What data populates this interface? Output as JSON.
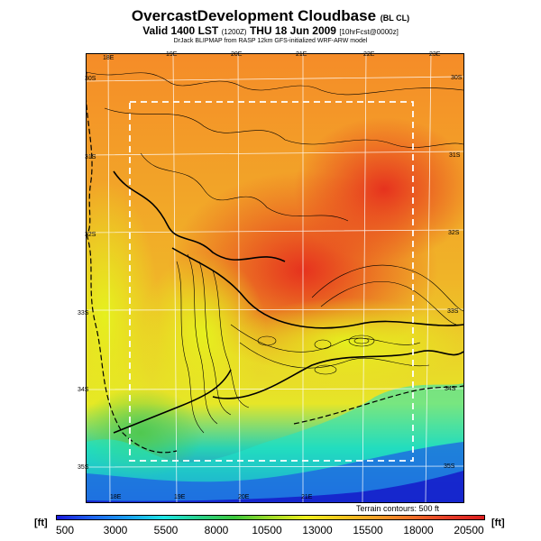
{
  "header": {
    "title": "OvercastDevelopment Cloudbase",
    "title_unit": "(BL CL)",
    "valid": "Valid 1400 LST",
    "valid_utc": "(1200Z)",
    "valid_date": "THU 18 Jun 2009",
    "valid_run": "[10hrFcst@0000z]",
    "credit": "DrJack BLIPMAP from RASP 12km GFS-initialized WRF-ARW model"
  },
  "map": {
    "lon_labels_top": [
      "18E",
      "19E",
      "20E",
      "21E",
      "22E",
      "23E"
    ],
    "lon_labels_bottom": [
      "18E",
      "19E",
      "20E",
      "21E"
    ],
    "lat_labels_left": [
      "30S",
      "31S",
      "32S",
      "33S",
      "34S",
      "35S"
    ],
    "lat_labels_right": [
      "30S",
      "31S",
      "32S",
      "33S",
      "34S",
      "35S"
    ],
    "terrain_note": "Terrain contours: 500 ft"
  },
  "colorbar": {
    "unit_left": "[ft]",
    "unit_right": "[ft]",
    "ticks": [
      "500",
      "3000",
      "5500",
      "8000",
      "10500",
      "13000",
      "15500",
      "18000",
      "20500"
    ],
    "colors": [
      "#1a1adc",
      "#1e64f0",
      "#19a0f0",
      "#1ee6e6",
      "#28d28c",
      "#3cc83c",
      "#a0dc28",
      "#f0f01e",
      "#f5c81e",
      "#f5a028",
      "#f06e28",
      "#e63c28",
      "#dc1e1e"
    ]
  }
}
